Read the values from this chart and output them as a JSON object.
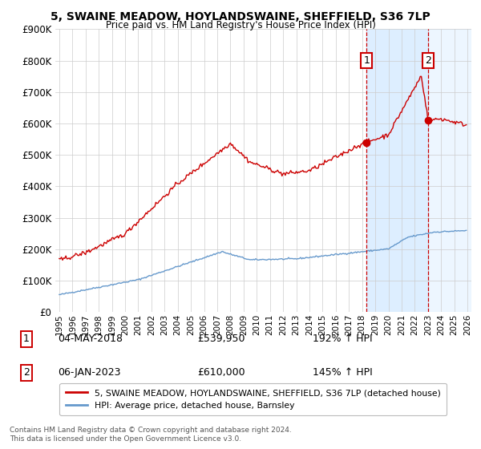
{
  "title": "5, SWAINE MEADOW, HOYLANDSWAINE, SHEFFIELD, S36 7LP",
  "subtitle": "Price paid vs. HM Land Registry's House Price Index (HPI)",
  "legend_label_red": "5, SWAINE MEADOW, HOYLANDSWAINE, SHEFFIELD, S36 7LP (detached house)",
  "legend_label_blue": "HPI: Average price, detached house, Barnsley",
  "sale1_date": "04-MAY-2018",
  "sale1_price": 539950,
  "sale1_label": "192% ↑ HPI",
  "sale2_date": "06-JAN-2023",
  "sale2_price": 610000,
  "sale2_label": "145% ↑ HPI",
  "footnote": "Contains HM Land Registry data © Crown copyright and database right 2024.\nThis data is licensed under the Open Government Licence v3.0.",
  "ylim_min": 0,
  "ylim_max": 900000,
  "xlim_min": 1994.7,
  "xlim_max": 2026.3,
  "background_color": "#ffffff",
  "red_color": "#cc0000",
  "blue_color": "#6699cc",
  "vline_color": "#cc0000",
  "shade_color": "#ddeeff",
  "grid_color": "#cccccc",
  "sale1_x": 2018.35,
  "sale2_x": 2023.02
}
